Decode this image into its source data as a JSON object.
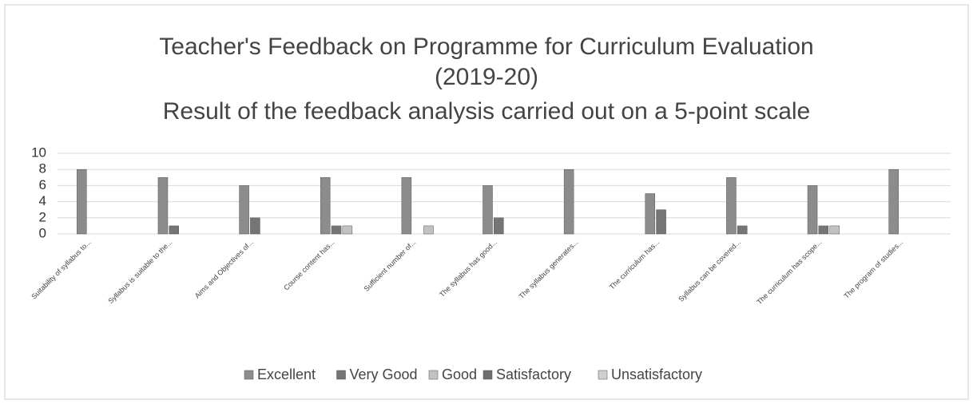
{
  "chart_data": {
    "type": "bar",
    "title": [
      "Teacher's Feedback on Programme for Curriculum Evaluation",
      "(2019-20)"
    ],
    "subtitle": "Result of the feedback analysis carried out on a 5-point scale",
    "categories": [
      "Suitability of syllabus to...",
      "Syllabus is suitable to the...",
      "Aims and Objectives of...",
      "Course content has...",
      "Sufficient number of...",
      "The syllabus has good...",
      "The syllabus generates...",
      "The curriculum has...",
      "Syllabus can be covered...",
      "The curriculum has scope...",
      "The program of studies..."
    ],
    "series": [
      {
        "name": "Excellent",
        "color": "#8c8c8c",
        "values": [
          8,
          7,
          6,
          7,
          7,
          6,
          8,
          5,
          7,
          6,
          8
        ]
      },
      {
        "name": "Very Good",
        "color": "#757575",
        "values": [
          0,
          1,
          2,
          1,
          0,
          2,
          0,
          3,
          1,
          1,
          0
        ]
      },
      {
        "name": "Good",
        "color": "#c2c2c2",
        "values": [
          0,
          0,
          0,
          1,
          1,
          0,
          0,
          0,
          0,
          1,
          0
        ]
      },
      {
        "name": "Satisfactory",
        "color": "#6e6e6e",
        "values": [
          0,
          0,
          0,
          0,
          0,
          0,
          0,
          0,
          0,
          0,
          0
        ]
      },
      {
        "name": "Unsatisfactory",
        "color": "#cfcfcf",
        "values": [
          0,
          0,
          0,
          0,
          0,
          0,
          0,
          0,
          0,
          0,
          0
        ]
      }
    ],
    "ylim": [
      0,
      10
    ],
    "yticks": [
      0,
      2,
      4,
      6,
      8,
      10
    ],
    "grid": true,
    "legend": "bottom"
  }
}
